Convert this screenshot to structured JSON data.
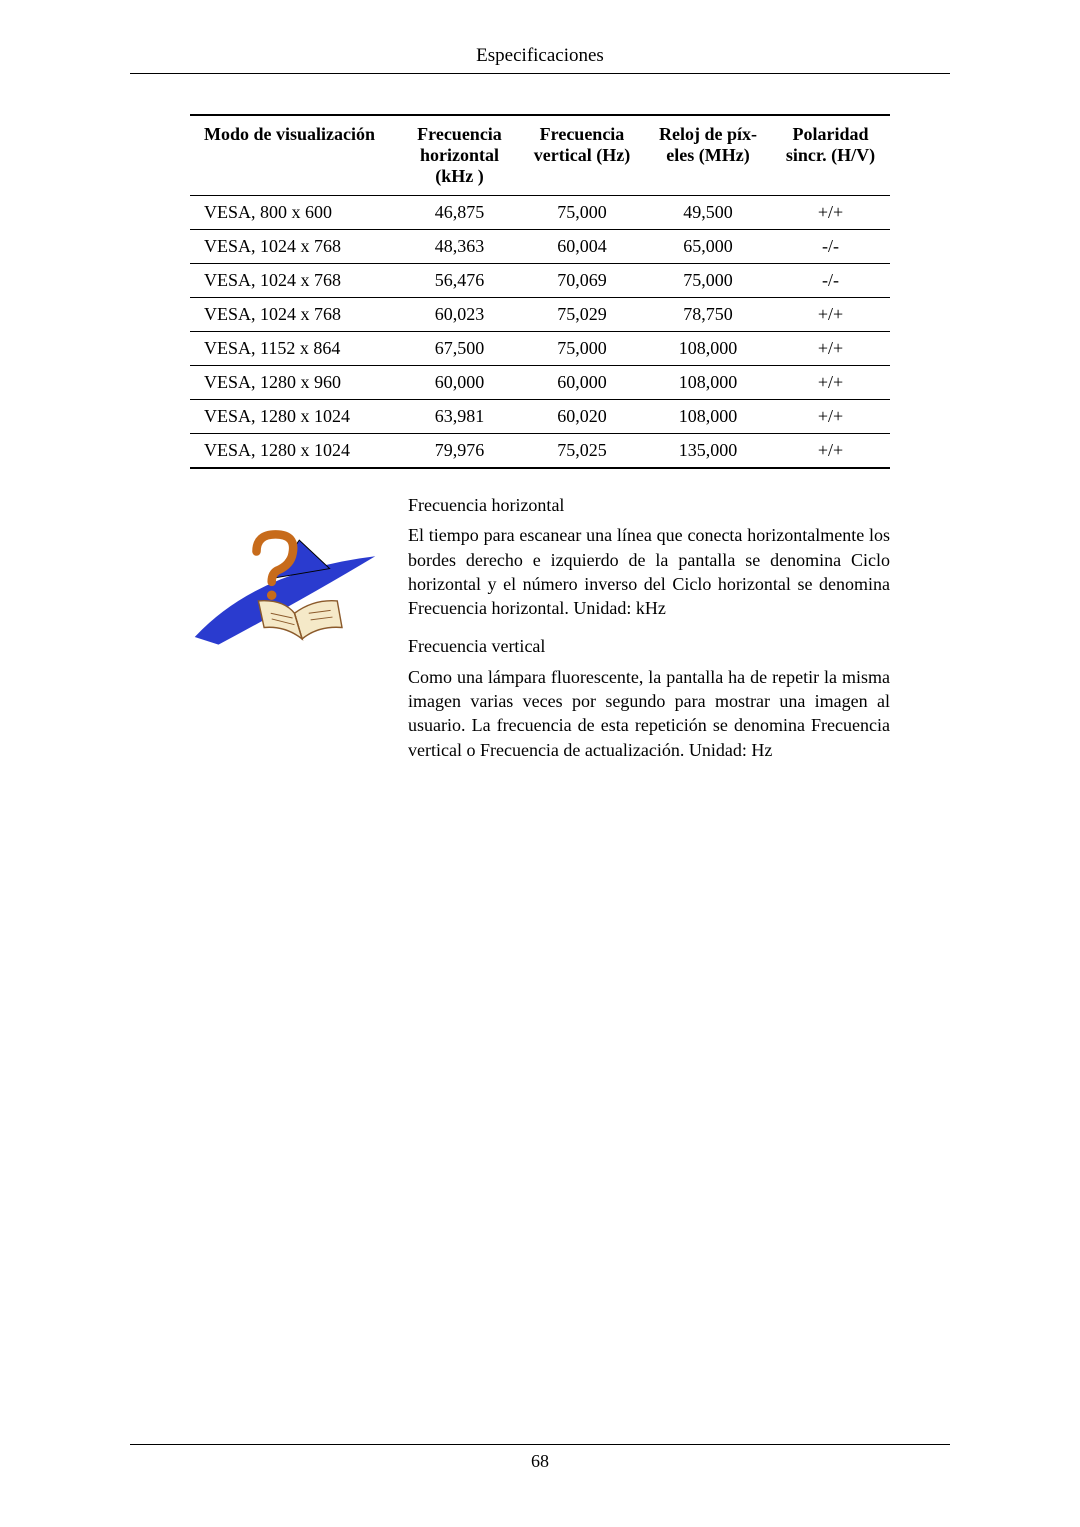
{
  "header": {
    "title": "Especificaciones"
  },
  "table": {
    "headers": {
      "mode": "Modo de visualización",
      "hfreq_l1": "Frecuencia",
      "hfreq_l2": "horizontal",
      "hfreq_l3": "(kHz )",
      "vfreq_l1": "Frecuencia",
      "vfreq_l2": "vertical (Hz)",
      "pclk_l1": "Reloj de píx-",
      "pclk_l2": "eles (MHz)",
      "pol_l1": "Polaridad",
      "pol_l2": "sincr. (H/V)"
    },
    "rows": [
      {
        "mode": "VESA, 800 x 600",
        "h": "46,875",
        "v": "75,000",
        "p": "49,500",
        "pol": "+/+"
      },
      {
        "mode": "VESA, 1024 x 768",
        "h": "48,363",
        "v": "60,004",
        "p": "65,000",
        "pol": "-/-"
      },
      {
        "mode": "VESA, 1024 x 768",
        "h": "56,476",
        "v": "70,069",
        "p": "75,000",
        "pol": "-/-"
      },
      {
        "mode": "VESA, 1024 x 768",
        "h": "60,023",
        "v": "75,029",
        "p": "78,750",
        "pol": "+/+"
      },
      {
        "mode": "VESA, 1152 x 864",
        "h": "67,500",
        "v": "75,000",
        "p": "108,000",
        "pol": "+/+"
      },
      {
        "mode": "VESA, 1280 x 960",
        "h": "60,000",
        "v": "60,000",
        "p": "108,000",
        "pol": "+/+"
      },
      {
        "mode": "VESA, 1280 x 1024",
        "h": "63,981",
        "v": "60,020",
        "p": "108,000",
        "pol": "+/+"
      },
      {
        "mode": "VESA, 1280 x 1024",
        "h": "79,976",
        "v": "75,025",
        "p": "135,000",
        "pol": "+/+"
      }
    ]
  },
  "explain": {
    "h_title": "Frecuencia horizontal",
    "h_body": "El tiempo para escanear una línea que conecta horizontalmente los bordes derecho e izquierdo de la pantalla se denomina Ciclo horizontal y el número inverso del Ciclo horizontal se denomina Frecuencia horizontal. Unidad: kHz",
    "v_title": "Frecuencia vertical",
    "v_body": "Como una lámpara fluorescente, la pantalla ha de repetir la misma imagen varias veces por segundo para mostrar una imagen al usuario. La frecuencia de esta repetición se denomina Frecuencia vertical o Frecuencia de actualización. Unidad: Hz"
  },
  "footer": {
    "page_number": "68"
  },
  "icon": {
    "swoosh_color": "#2a3bcf",
    "qmark_color": "#c76b1b",
    "book_stroke": "#8b5a2b",
    "book_page": "#f5e9c8",
    "triangle_fill": "#2a3bcf"
  }
}
